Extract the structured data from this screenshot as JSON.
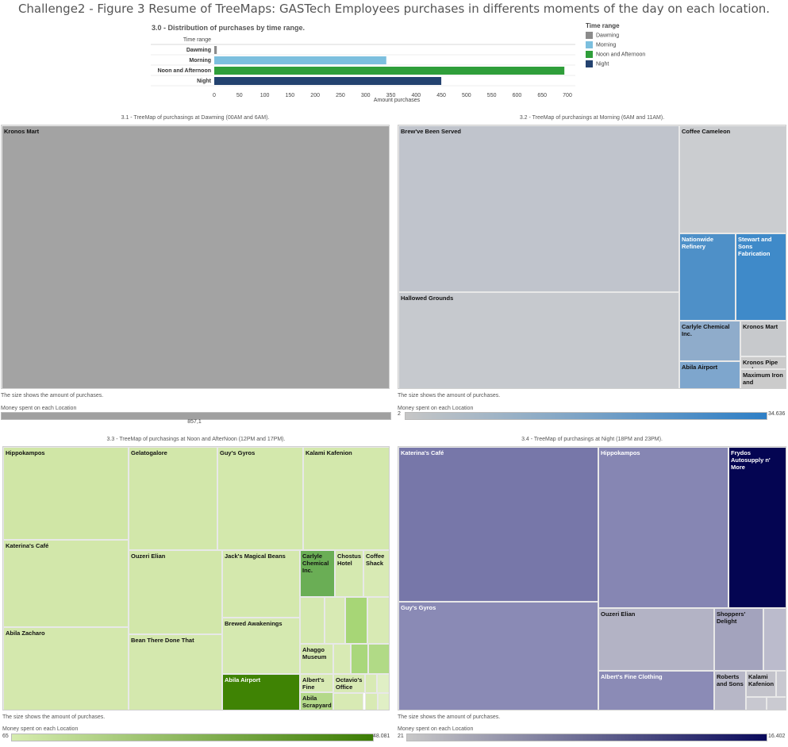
{
  "title": "Challenge2 - Figure 3  Resume of TreeMaps: GASTech Employees purchases in differents moments of the day on each location.",
  "chart_data": [
    {
      "type": "bar",
      "title": "3.0  -  Distribution of purchases by time range.",
      "header": "Time range",
      "categories": [
        "Dawming",
        "Morning",
        "Noon and Afternoon",
        "Night"
      ],
      "values": [
        5,
        341,
        694,
        450
      ],
      "colors": [
        "#8b8b8b",
        "#7cbfde",
        "#2f9e3a",
        "#23426f"
      ],
      "xlabel": "Amount purchases",
      "xlim": [
        0,
        700
      ],
      "xticks": [
        "0",
        "50",
        "100",
        "150",
        "200",
        "250",
        "300",
        "350",
        "400",
        "450",
        "500",
        "550",
        "600",
        "650",
        "700"
      ],
      "legend": {
        "title": "Time range",
        "position": "right",
        "items": [
          "Dawming",
          "Morning",
          "Noon and Afternoon",
          "Night"
        ]
      }
    },
    {
      "type": "treemap",
      "title": "3.1  -  TreeMap of purchasings at Dawming (00AM and 6AM).",
      "cells": [
        {
          "label": "Kronos Mart",
          "color": "#a3a3a3"
        }
      ],
      "note": "The size shows the amount of purchases.",
      "legend_title": "Money spent on each Location",
      "legend_min": "",
      "legend_max": "",
      "legend_value": "857,1",
      "gradient": [
        "#a0a0a0",
        "#a0a0a0"
      ]
    },
    {
      "type": "treemap",
      "title": "3.2  -  TreeMap of purchasings at Morning (6AM and 11AM).",
      "cells": [
        {
          "label": "Brew've Been Served",
          "color": "#c0c4cc"
        },
        {
          "label": "Hallowed Grounds",
          "color": "#c6c9ce"
        },
        {
          "label": "Coffee Cameleon",
          "color": "#cbcdd0"
        },
        {
          "label": "Nationwide Refinery",
          "color": "#4e90c8",
          "light": true
        },
        {
          "label": "Stewart and Sons Fabrication",
          "color": "#3f8ac9",
          "light": true
        },
        {
          "label": "Carlyle Chemical Inc.",
          "color": "#8faccb"
        },
        {
          "label": "Kronos Mart",
          "color": "#c7c9cc"
        },
        {
          "label": "Abila Airport",
          "color": "#7ea6cd"
        },
        {
          "label": "Kronos Pipe and",
          "color": "#cbcbcb"
        },
        {
          "label": "Maximum Iron and",
          "color": "#cbcbcb"
        }
      ],
      "note": "The size shows the amount of purchases.",
      "legend_title": "Money spent on each Location",
      "legend_min": "2",
      "legend_max": "34.636",
      "gradient": [
        "#c6c6c6",
        "#2e7fc6"
      ]
    },
    {
      "type": "treemap",
      "title": "3.3  -  TreeMap of purchasings at Noon and AfterNoon (12PM and 17PM).",
      "cells": [
        {
          "label": "Hippokampos",
          "color": "#d0e6a6"
        },
        {
          "label": "Katerina's Café",
          "color": "#d2e7aa"
        },
        {
          "label": "Abila Zacharo",
          "color": "#d4e8ad"
        },
        {
          "label": "Gelatogalore",
          "color": "#d2e7aa"
        },
        {
          "label": "Guy's Gyros",
          "color": "#d3e8ac"
        },
        {
          "label": "Kalami Kafenion",
          "color": "#d3e8ac"
        },
        {
          "label": "Ouzeri Elian",
          "color": "#d2e7aa"
        },
        {
          "label": "Bean There Done That",
          "color": "#d4e8ae"
        },
        {
          "label": "Jack's Magical Beans",
          "color": "#d4e8ad"
        },
        {
          "label": "Brewed Awakenings",
          "color": "#d5e9b0"
        },
        {
          "label": "Abila Airport",
          "color": "#3f8304",
          "light": true
        },
        {
          "label": "Carlyle Chemical Inc.",
          "color": "#6aae55"
        },
        {
          "label": "Chostus Hotel",
          "color": "#d5e9b0"
        },
        {
          "label": "Coffee Shack",
          "color": "#d8eab4"
        },
        {
          "label": "Ahaggo Museum",
          "color": "#d5e9b0"
        },
        {
          "label": "Albert's Fine",
          "color": "#d8eab4"
        },
        {
          "label": "Octavio's Office",
          "color": "#d8eab4"
        },
        {
          "label": "Abila Scrapyard",
          "color": "#b4d98a"
        }
      ],
      "note": "The size shows the amount of purchases.",
      "legend_title": "Money spent on each Location",
      "legend_min": "65",
      "legend_max": "48.081",
      "gradient": [
        "#d6ecaf",
        "#3c7d04"
      ]
    },
    {
      "type": "treemap",
      "title": "3.4  -  TreeMap of purchasings at Night (18PM and 23PM).",
      "cells": [
        {
          "label": "Katerina's Café",
          "color": "#7777a9",
          "light": true
        },
        {
          "label": "Guy's Gyros",
          "color": "#8a8ab5",
          "light": true
        },
        {
          "label": "Hippokampos",
          "color": "#8686b3",
          "light": true
        },
        {
          "label": "Frydos Autosupply n' More",
          "color": "#040552",
          "light": true
        },
        {
          "label": "Ouzeri Elian",
          "color": "#b3b3c5"
        },
        {
          "label": "Albert's Fine Clothing",
          "color": "#8b8bb6",
          "light": true
        },
        {
          "label": "Shoppers' Delight",
          "color": "#a3a3bd"
        },
        {
          "label": "Roberts and Sons",
          "color": "#b7b7c7"
        },
        {
          "label": "Kalami Kafenion",
          "color": "#c3c3cb"
        }
      ],
      "note": "The size shows the amount of purchases.",
      "legend_title": "Money spent on each Location",
      "legend_min": "21",
      "legend_max": "16.402",
      "gradient": [
        "#c8c8c8",
        "#0a0a5c"
      ]
    }
  ]
}
